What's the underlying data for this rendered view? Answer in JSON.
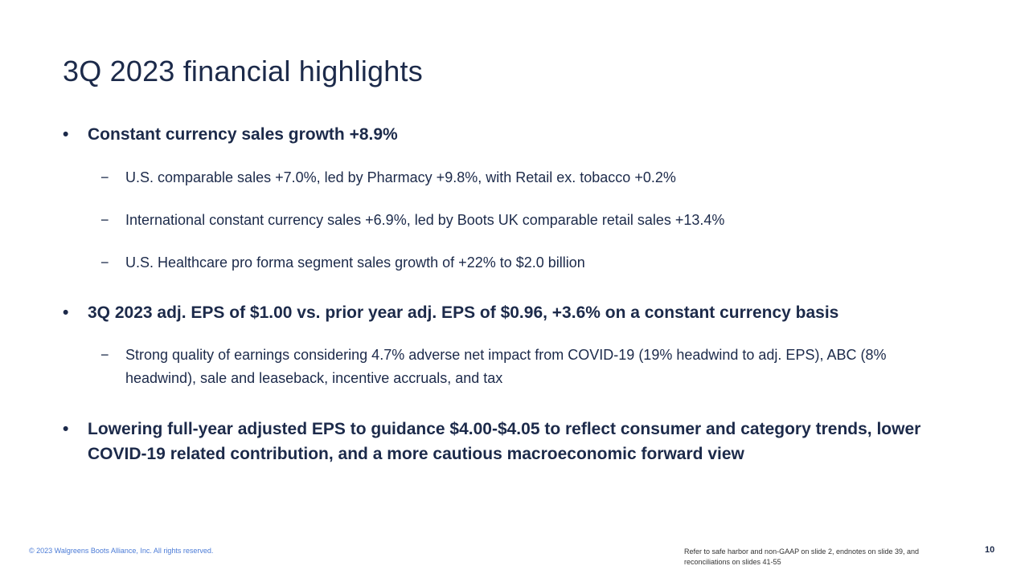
{
  "slide": {
    "title": "3Q 2023 financial highlights",
    "bullet_glyph": "•",
    "dash_glyph": "−",
    "bullets": [
      {
        "text": "Constant currency sales growth +8.9%",
        "subs": [
          "U.S. comparable sales +7.0%, led by Pharmacy +9.8%, with Retail ex. tobacco +0.2%",
          "International constant currency sales +6.9%, led by Boots UK comparable retail sales +13.4%",
          "U.S. Healthcare pro forma segment sales growth of +22% to $2.0 billion"
        ]
      },
      {
        "text": "3Q 2023 adj. EPS of $1.00 vs. prior year adj. EPS of $0.96, +3.6% on a constant currency basis",
        "subs": [
          "Strong quality of earnings considering 4.7% adverse net impact from COVID-19 (19% headwind to adj. EPS), ABC (8% headwind), sale and leaseback, incentive accruals, and tax"
        ]
      },
      {
        "text": "Lowering full-year adjusted EPS to guidance $4.00-$4.05 to reflect consumer and category trends, lower COVID-19 related contribution, and a more cautious macroeconomic forward view",
        "subs": []
      }
    ]
  },
  "footer": {
    "copyright": "© 2023 Walgreens Boots Alliance, Inc. All rights reserved.",
    "disclaimer": "Refer to safe harbor and non-GAAP on slide 2, endnotes on slide 39, and reconciliations on slides 41-55",
    "page_number": "10"
  },
  "colors": {
    "text": "#1c2a4a",
    "footer_link": "#4b7bd6"
  }
}
